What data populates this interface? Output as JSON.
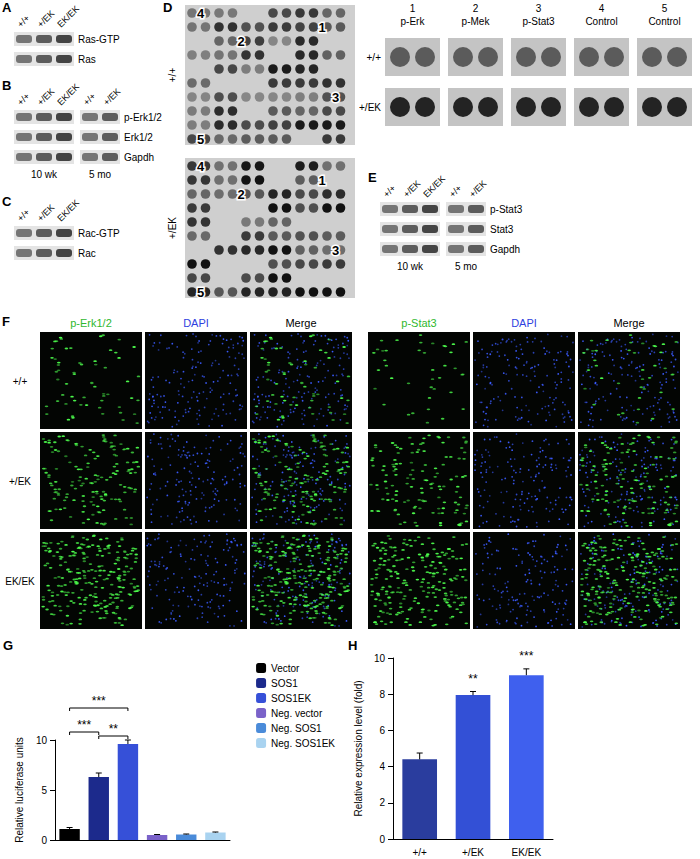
{
  "figure": {
    "A": {
      "label": "A",
      "lanes": [
        "+/+",
        "+/EK",
        "EK/EK"
      ],
      "rows": [
        "Ras-GTP",
        "Ras"
      ]
    },
    "B": {
      "label": "B",
      "lanes": [
        "+/+",
        "+/EK",
        "EK/EK",
        "+/+",
        "+/EK"
      ],
      "rows": [
        "p-Erk1/2",
        "Erk1/2",
        "Gapdh"
      ],
      "groups": [
        {
          "text": "10 wk",
          "lanes": 3
        },
        {
          "text": "5 mo",
          "lanes": 2
        }
      ]
    },
    "C": {
      "label": "C",
      "lanes": [
        "+/+",
        "+/EK",
        "EK/EK"
      ],
      "rows": [
        "Rac-GTP",
        "Rac"
      ]
    },
    "D": {
      "label": "D",
      "arrays": [
        {
          "genotype": "+/+"
        },
        {
          "genotype": "+/EK"
        }
      ],
      "spot_labels": [
        "1",
        "2",
        "3",
        "4",
        "5"
      ],
      "insets": [
        {
          "number": "1",
          "name": "p-Erk"
        },
        {
          "number": "2",
          "name": "p-Mek"
        },
        {
          "number": "3",
          "name": "p-Stat3"
        },
        {
          "number": "4",
          "name": "Control"
        },
        {
          "number": "5",
          "name": "Control"
        }
      ],
      "inset_rows": [
        "+/+",
        "+/EK"
      ]
    },
    "E": {
      "label": "E",
      "lanes": [
        "+/+",
        "+/EK",
        "EK/EK",
        "+/+",
        "+/EK"
      ],
      "rows": [
        "p-Stat3",
        "Stat3",
        "Gapdh"
      ],
      "groups": [
        {
          "text": "10 wk",
          "lanes": 3
        },
        {
          "text": "5 mo",
          "lanes": 2
        }
      ]
    },
    "F": {
      "label": "F",
      "columns": [
        "p-Erk1/2",
        "DAPI",
        "Merge",
        "p-Stat3",
        "DAPI",
        "Merge"
      ],
      "rows": [
        "+/+",
        "+/EK",
        "EK/EK"
      ]
    }
  },
  "chart_data": [
    {
      "panel_label": "G",
      "type": "bar",
      "categories": [
        "Vector",
        "SOS1",
        "SOS1EK",
        "Neg. vector",
        "Neg. SOS1",
        "Neg. SOS1EK"
      ],
      "values": [
        1.1,
        6.3,
        9.6,
        0.5,
        0.55,
        0.75
      ],
      "errors": [
        0.15,
        0.4,
        0.4,
        0.05,
        0.05,
        0.05
      ],
      "colors": [
        "#000000",
        "#1c2a8c",
        "#3650d8",
        "#7a62c9",
        "#4a8bd9",
        "#a9d3f0"
      ],
      "ylim": [
        0,
        10
      ],
      "yticks": [
        0,
        5,
        10
      ],
      "y_label": "Relative luciferase units",
      "legend": "right",
      "tick_labels": "y",
      "grid": false,
      "annotations": [
        {
          "text": "***",
          "from": 0,
          "to": 2,
          "y": 13.2
        },
        {
          "text": "***",
          "from": 0,
          "to": 1,
          "y": 10.8
        },
        {
          "text": "**",
          "from": 1,
          "to": 2,
          "y": 10.4
        }
      ]
    },
    {
      "panel_label": "H",
      "type": "bar",
      "categories": [
        "+/+",
        "+/EK",
        "EK/EK"
      ],
      "values": [
        4.4,
        7.95,
        9.05
      ],
      "errors": [
        0.35,
        0.2,
        0.35
      ],
      "colors": [
        "#2a3d9e",
        "#3350d6",
        "#3f60ee"
      ],
      "ylim": [
        0,
        10
      ],
      "yticks": [
        0,
        2,
        4,
        6,
        8,
        10
      ],
      "y_label": "Relative expression level (fold)",
      "grid": false,
      "annotations": [
        {
          "text": "**",
          "category": 1,
          "y": 8.5
        },
        {
          "text": "***",
          "category": 2,
          "y": 9.8
        }
      ]
    }
  ]
}
